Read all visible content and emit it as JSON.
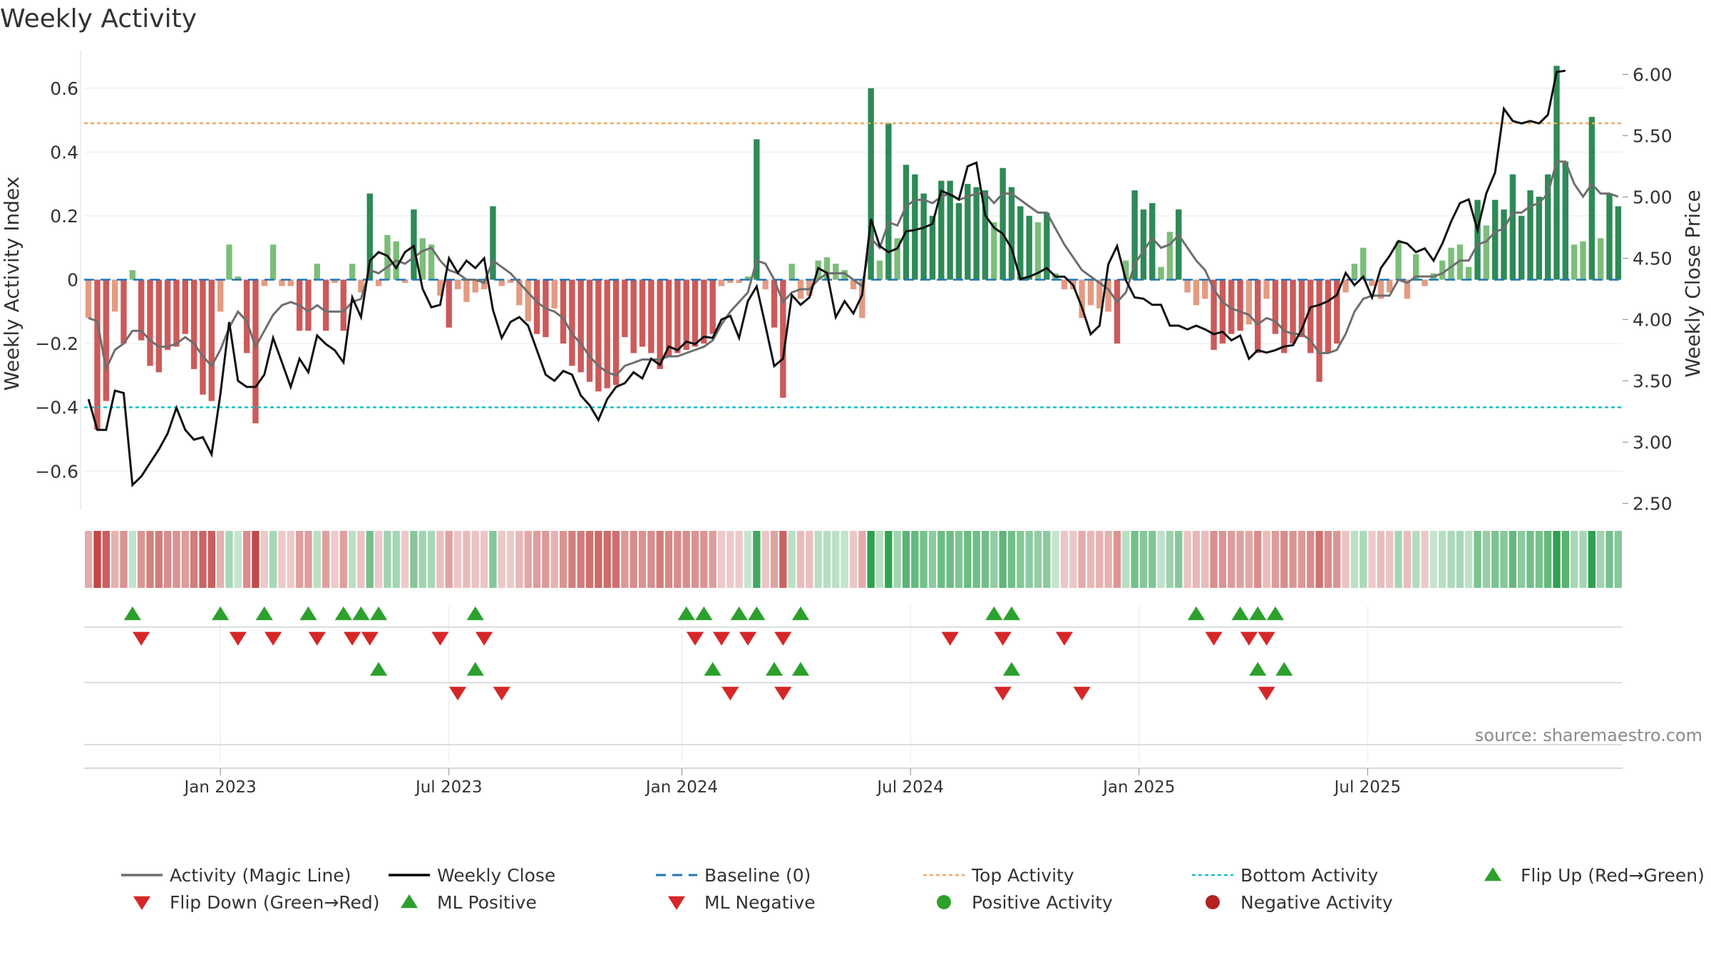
{
  "chart_data": {
    "type": "bar",
    "title": "Weekly Activity",
    "ylabel_left": "Weekly Activity Index",
    "ylabel_right": "Weekly Close Price",
    "source": "source: sharemaestro.com",
    "left_axis": {
      "ylim": [
        -0.72,
        0.72
      ],
      "ticks": [
        0.6,
        0.4,
        0.2,
        0,
        -0.2,
        -0.4,
        -0.6
      ],
      "tick_labels": [
        "0.6",
        "0.4",
        "0.2",
        "0",
        "−0.2",
        "−0.4",
        "−0.6"
      ]
    },
    "right_axis": {
      "ylim": [
        2.45,
        6.2
      ],
      "ticks": [
        6.0,
        5.5,
        5.0,
        4.5,
        4.0,
        3.5,
        3.0,
        2.5
      ],
      "tick_labels": [
        "6.00",
        "5.50",
        "5.00",
        "4.50",
        "4.00",
        "3.50",
        "3.00",
        "2.50"
      ]
    },
    "x_ticks": [
      {
        "label": "Jan 2023",
        "week": 15
      },
      {
        "label": "Jul 2023",
        "week": 41
      },
      {
        "label": "Jan 2024",
        "week": 67.5
      },
      {
        "label": "Jul 2024",
        "week": 93.5
      },
      {
        "label": "Jan 2025",
        "week": 119.5
      },
      {
        "label": "Jul 2025",
        "week": 145.5
      }
    ],
    "top_activity": 0.49,
    "bottom_activity": -0.4,
    "baseline": 0,
    "activity": [
      -0.12,
      -0.47,
      -0.38,
      -0.1,
      -0.2,
      0.03,
      -0.19,
      -0.27,
      -0.29,
      -0.22,
      -0.21,
      -0.17,
      -0.28,
      -0.36,
      -0.38,
      -0.1,
      0.11,
      0.01,
      -0.23,
      -0.45,
      -0.02,
      0.11,
      -0.02,
      -0.02,
      -0.16,
      -0.16,
      0.05,
      -0.16,
      -0.01,
      -0.16,
      0.05,
      -0.04,
      0.27,
      -0.02,
      0.14,
      0.12,
      -0.01,
      0.22,
      0.13,
      0.11,
      -0.05,
      -0.15,
      -0.03,
      -0.07,
      -0.04,
      -0.03,
      0.23,
      -0.02,
      -0.01,
      -0.08,
      -0.13,
      -0.17,
      -0.18,
      -0.09,
      -0.2,
      -0.27,
      -0.29,
      -0.32,
      -0.35,
      -0.34,
      -0.33,
      -0.18,
      -0.23,
      -0.21,
      -0.23,
      -0.28,
      -0.24,
      -0.23,
      -0.22,
      -0.21,
      -0.2,
      -0.17,
      -0.02,
      -0.01,
      -0.01,
      0.01,
      0.44,
      -0.03,
      -0.15,
      -0.37,
      0.05,
      -0.06,
      -0.05,
      0.06,
      0.07,
      0.05,
      0.03,
      -0.03,
      -0.12,
      0.6,
      0.06,
      0.49,
      0.13,
      0.36,
      0.33,
      0.27,
      0.2,
      0.31,
      0.31,
      0.24,
      0.3,
      0.29,
      0.28,
      0.18,
      0.35,
      0.29,
      0.23,
      0.2,
      0.18,
      0.21,
      0.02,
      -0.03,
      -0.03,
      -0.12,
      -0.08,
      -0.09,
      -0.1,
      -0.2,
      0.06,
      0.28,
      0.22,
      0.24,
      0.04,
      0.15,
      0.22,
      -0.04,
      -0.08,
      -0.06,
      -0.22,
      -0.2,
      -0.17,
      -0.16,
      -0.14,
      -0.23,
      -0.06,
      -0.17,
      -0.23,
      -0.2,
      -0.18,
      -0.23,
      -0.32,
      -0.23,
      -0.2,
      -0.04,
      0.05,
      0.1,
      -0.02,
      -0.06,
      -0.04,
      0.12,
      -0.06,
      0.08,
      -0.02,
      0.02,
      0.06,
      0.1,
      0.11,
      0.04,
      0.25,
      0.17,
      0.25,
      0.22,
      0.33,
      0.2,
      0.28,
      0.26,
      0.33,
      0.67,
      0.37,
      0.11,
      0.12,
      0.51,
      0.13,
      0.27,
      0.23
    ],
    "magic_line": [
      -0.12,
      -0.13,
      -0.28,
      -0.22,
      -0.2,
      -0.16,
      -0.16,
      -0.19,
      -0.21,
      -0.21,
      -0.2,
      -0.18,
      -0.2,
      -0.24,
      -0.27,
      -0.22,
      -0.15,
      -0.1,
      -0.13,
      -0.21,
      -0.16,
      -0.11,
      -0.08,
      -0.07,
      -0.08,
      -0.1,
      -0.08,
      -0.1,
      -0.1,
      -0.1,
      -0.07,
      -0.06,
      0.03,
      0.02,
      0.04,
      0.06,
      0.05,
      0.07,
      0.09,
      0.1,
      0.06,
      0.03,
      0.02,
      0.0,
      0.0,
      -0.01,
      0.06,
      0.04,
      0.02,
      -0.01,
      -0.04,
      -0.07,
      -0.09,
      -0.1,
      -0.12,
      -0.17,
      -0.2,
      -0.24,
      -0.27,
      -0.29,
      -0.3,
      -0.27,
      -0.26,
      -0.25,
      -0.25,
      -0.25,
      -0.24,
      -0.24,
      -0.23,
      -0.22,
      -0.21,
      -0.19,
      -0.14,
      -0.1,
      -0.07,
      -0.04,
      0.06,
      0.05,
      0.0,
      -0.07,
      -0.04,
      -0.03,
      -0.03,
      0.0,
      0.02,
      0.02,
      0.02,
      0.0,
      -0.02,
      0.13,
      0.1,
      0.18,
      0.17,
      0.23,
      0.25,
      0.25,
      0.24,
      0.26,
      0.27,
      0.25,
      0.26,
      0.27,
      0.27,
      0.24,
      0.27,
      0.27,
      0.25,
      0.23,
      0.21,
      0.21,
      0.16,
      0.11,
      0.07,
      0.03,
      0.01,
      -0.01,
      -0.03,
      -0.07,
      -0.04,
      0.05,
      0.09,
      0.13,
      0.1,
      0.11,
      0.14,
      0.1,
      0.06,
      0.03,
      -0.03,
      -0.07,
      -0.09,
      -0.1,
      -0.11,
      -0.14,
      -0.12,
      -0.13,
      -0.16,
      -0.17,
      -0.17,
      -0.19,
      -0.23,
      -0.23,
      -0.22,
      -0.17,
      -0.1,
      -0.06,
      -0.05,
      -0.05,
      -0.05,
      0.0,
      -0.01,
      0.01,
      0.01,
      0.01,
      0.02,
      0.04,
      0.06,
      0.06,
      0.11,
      0.12,
      0.15,
      0.16,
      0.21,
      0.21,
      0.23,
      0.24,
      0.27,
      0.37,
      0.37,
      0.3,
      0.26,
      0.3,
      0.27,
      0.27,
      0.26
    ],
    "weekly_close": [
      3.35,
      3.1,
      3.1,
      3.42,
      3.4,
      2.65,
      2.72,
      2.83,
      2.94,
      3.07,
      3.28,
      3.1,
      3.02,
      3.04,
      2.9,
      3.39,
      3.98,
      3.5,
      3.45,
      3.45,
      3.55,
      3.85,
      3.65,
      3.45,
      3.68,
      3.57,
      3.87,
      3.8,
      3.75,
      3.65,
      4.18,
      4.02,
      4.48,
      4.55,
      4.52,
      4.42,
      4.55,
      4.6,
      4.25,
      4.1,
      4.12,
      4.5,
      4.38,
      4.48,
      4.42,
      4.5,
      4.08,
      3.85,
      3.98,
      4.02,
      3.95,
      3.75,
      3.55,
      3.5,
      3.58,
      3.55,
      3.38,
      3.3,
      3.18,
      3.35,
      3.45,
      3.48,
      3.57,
      3.52,
      3.68,
      3.63,
      3.78,
      3.75,
      3.82,
      3.8,
      3.86,
      3.85,
      4.0,
      4.03,
      3.85,
      4.15,
      4.27,
      3.95,
      3.62,
      3.68,
      4.2,
      4.12,
      4.18,
      4.42,
      4.38,
      4.02,
      4.15,
      4.05,
      4.2,
      4.82,
      4.6,
      4.55,
      4.58,
      4.72,
      4.73,
      4.75,
      4.78,
      5.05,
      5.02,
      4.98,
      5.25,
      5.28,
      4.85,
      4.75,
      4.7,
      4.58,
      4.33,
      4.35,
      4.38,
      4.42,
      4.35,
      4.35,
      4.28,
      4.1,
      3.88,
      3.95,
      4.45,
      4.6,
      4.32,
      4.18,
      4.17,
      4.12,
      4.12,
      3.95,
      3.95,
      3.92,
      3.95,
      3.92,
      3.88,
      3.9,
      3.83,
      3.87,
      3.68,
      3.75,
      3.73,
      3.75,
      3.78,
      3.79,
      3.92,
      4.1,
      4.12,
      4.15,
      4.2,
      4.38,
      4.28,
      4.35,
      4.18,
      4.42,
      4.52,
      4.64,
      4.62,
      4.55,
      4.58,
      4.48,
      4.62,
      4.8,
      4.95,
      4.98,
      4.73,
      5.03,
      5.2,
      5.72,
      5.62,
      5.6,
      5.62,
      5.6,
      5.67,
      6.02,
      6.03
    ],
    "flip_up_weeks": [
      5,
      15,
      20,
      25,
      29,
      31,
      33,
      44,
      68,
      70,
      74,
      76,
      81,
      103,
      105,
      126,
      131,
      133,
      135
    ],
    "flip_down_weeks": [
      6,
      17,
      21,
      26,
      30,
      32,
      40,
      45,
      69,
      72,
      75,
      79,
      98,
      104,
      111,
      128,
      132,
      134
    ],
    "ml_positive_weeks": [
      33,
      44,
      71,
      78,
      81,
      105,
      133,
      136
    ],
    "ml_negative_weeks": [
      42,
      47,
      73,
      79,
      104,
      113,
      134
    ],
    "legend": [
      {
        "label": "Activity (Magic Line)",
        "style": "line",
        "color": "#6e6e6e"
      },
      {
        "label": "Weekly Close",
        "style": "line",
        "color": "#000000"
      },
      {
        "label": "Baseline (0)",
        "style": "dashed",
        "color": "#1f77b4"
      },
      {
        "label": "Top Activity",
        "style": "dotted",
        "color": "#f0a860"
      },
      {
        "label": "Bottom Activity",
        "style": "dotted",
        "color": "#17becf"
      },
      {
        "label": "Flip Up (Red→Green)",
        "style": "triangle-up",
        "color": "#2ca02c"
      },
      {
        "label": "Flip Down (Green→Red)",
        "style": "triangle-down",
        "color": "#d62728"
      },
      {
        "label": "ML Positive",
        "style": "triangle-up",
        "color": "#2ca02c"
      },
      {
        "label": "ML Negative",
        "style": "triangle-down",
        "color": "#d62728"
      },
      {
        "label": "Positive Activity",
        "style": "circle",
        "color": "#2ca02c"
      },
      {
        "label": "Negative Activity",
        "style": "circle",
        "color": "#b22222"
      }
    ]
  }
}
